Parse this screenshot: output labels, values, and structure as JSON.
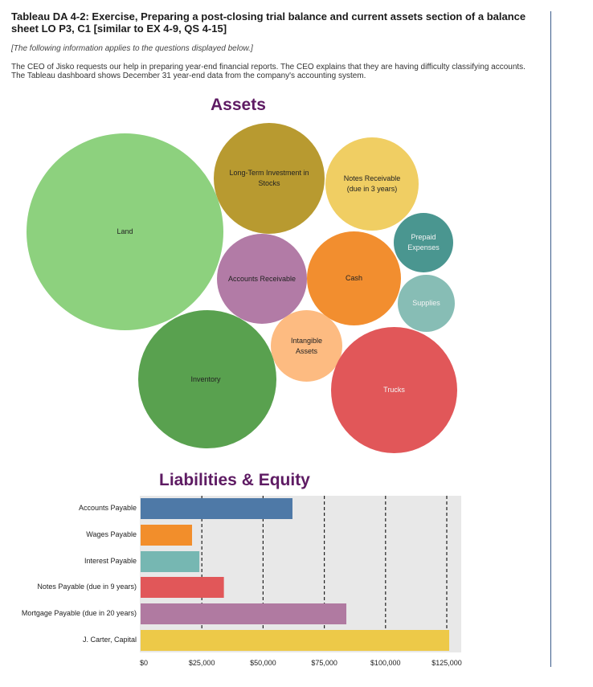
{
  "problem": {
    "title": "Tableau DA 4-2: Exercise, Preparing a post-closing trial balance and current assets section of a balance sheet LO P3, C1 [similar to EX 4-9, QS 4-15]",
    "intro": "[The following information applies to the questions displayed below.]",
    "description": "The CEO of Jisko requests our help in preparing year-end financial reports. The CEO explains that they are having difficulty classifying accounts. The Tableau dashboard shows December 31 year-end data from the company's accounting system."
  },
  "assets_heading": "Assets",
  "liabilities_heading": "Liabilities & Equity",
  "bubbles": [
    {
      "label": "Land",
      "color": "#8dd17e"
    },
    {
      "label": "Long-Term Investment in Stocks",
      "color": "#b89a30"
    },
    {
      "label": "Notes Receivable (due in 3 years)",
      "color": "#f0ce63"
    },
    {
      "label": "Prepaid Expenses",
      "color": "#4a9690"
    },
    {
      "label": "Accounts Receivable",
      "color": "#b27ba6"
    },
    {
      "label": "Cash",
      "color": "#f28e2f"
    },
    {
      "label": "Supplies",
      "color": "#87bdb5"
    },
    {
      "label": "Intangible Assets",
      "color": "#fdbb81"
    },
    {
      "label": "Inventory",
      "color": "#59a14f"
    },
    {
      "label": "Trucks",
      "color": "#e15759"
    }
  ],
  "chart_data": {
    "type": "bar",
    "orientation": "horizontal",
    "categories": [
      "Accounts Payable",
      "Wages Payable",
      "Interest Payable",
      "Notes Payable (due in 9 years)",
      "Mortgage Payable (due in 20 years)",
      "J. Carter, Capital"
    ],
    "values": [
      62000,
      21000,
      24000,
      34000,
      84000,
      126000
    ],
    "colors": [
      "#4e79a7",
      "#f28e2b",
      "#76b7b2",
      "#e15759",
      "#b07aa1",
      "#edc948"
    ],
    "xlim": [
      0,
      132000
    ],
    "xticks": [
      0,
      25000,
      50000,
      75000,
      100000,
      125000
    ],
    "xtick_labels": [
      "$0",
      "$25,000",
      "$50,000",
      "$75,000",
      "$100,000",
      "$125,000"
    ],
    "grid": "dashed vertical"
  }
}
